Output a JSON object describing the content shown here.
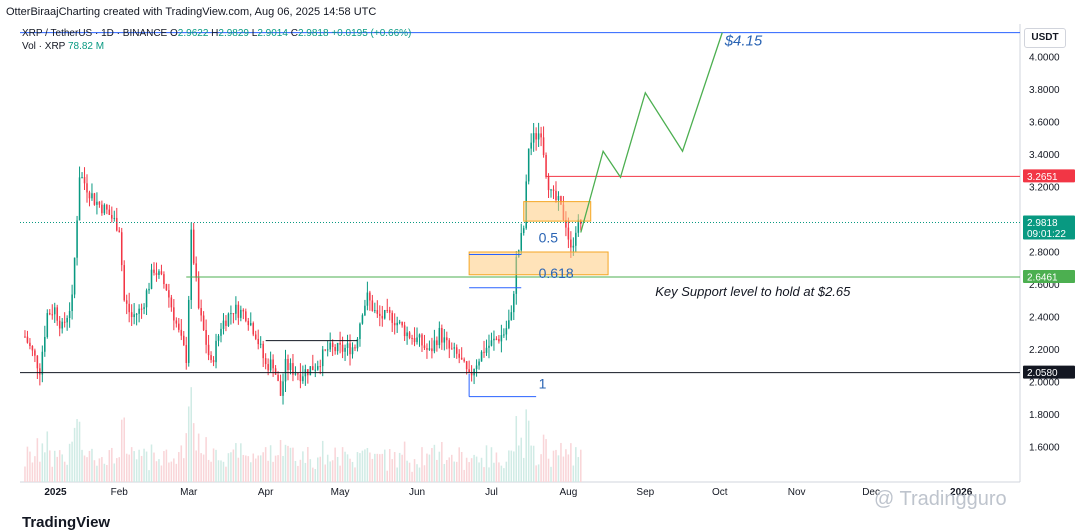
{
  "header": {
    "text": "OtterBiraajCharting created with TradingView.com, Aug 06, 2025 14:58 UTC"
  },
  "legend": {
    "symbol": "XRP / TetherUS · 1D · BINANCE",
    "o_label": "O",
    "o": "2.9622",
    "h_label": "H",
    "h": "2.9829",
    "l_label": "L",
    "l": "2.9014",
    "c_label": "C",
    "c": "2.9818",
    "change": "+0.0195 (+0.66%)",
    "vol_label": "Vol · XRP",
    "vol_value": "78.82 M"
  },
  "currency": "USDT",
  "footer_logo": "TradingView",
  "watermark": "@ Tradingguro",
  "colors": {
    "up": "#089981",
    "down": "#f23645",
    "vol_up": "#d0ebe5",
    "vol_down": "#f9d5d8",
    "green_line": "#4caf50",
    "red_line": "#f23645",
    "blue": "#2962ff",
    "dark": "#131722",
    "zone": "#ffcc80",
    "annotation": "#2a64b4"
  },
  "chart_data": {
    "type": "candlestick",
    "symbol": "XRP / TetherUS",
    "interval": "1D",
    "exchange": "BINANCE",
    "ylim": [
      1.5,
      4.2
    ],
    "y_ticks": [
      "4.0000",
      "3.8000",
      "3.6000",
      "3.4000",
      "3.2000",
      "3.0000",
      "2.8000",
      "2.6000",
      "2.4000",
      "2.2000",
      "2.0000",
      "1.8000",
      "1.6000"
    ],
    "x_ticks": [
      {
        "label": "2025",
        "date": "2025-01-01"
      },
      {
        "label": "Feb",
        "date": "2025-02-01"
      },
      {
        "label": "Mar",
        "date": "2025-03-01"
      },
      {
        "label": "Apr",
        "date": "2025-04-01"
      },
      {
        "label": "May",
        "date": "2025-05-01"
      },
      {
        "label": "Jun",
        "date": "2025-06-01"
      },
      {
        "label": "Jul",
        "date": "2025-07-01"
      },
      {
        "label": "Aug",
        "date": "2025-08-01"
      },
      {
        "label": "Sep",
        "date": "2025-09-01"
      },
      {
        "label": "Oct",
        "date": "2025-10-01"
      },
      {
        "label": "Nov",
        "date": "2025-11-01"
      },
      {
        "label": "Dec",
        "date": "2025-12-01"
      },
      {
        "label": "2026",
        "date": "2026-01-01"
      }
    ],
    "price_close_path": [
      {
        "date": "2024-12-25",
        "price": 2.28
      },
      {
        "date": "2024-12-31",
        "price": 2.08
      },
      {
        "date": "2025-01-03",
        "price": 2.42
      },
      {
        "date": "2025-01-06",
        "price": 2.45
      },
      {
        "date": "2025-01-09",
        "price": 2.33
      },
      {
        "date": "2025-01-13",
        "price": 2.5
      },
      {
        "date": "2025-01-16",
        "price": 3.28
      },
      {
        "date": "2025-01-19",
        "price": 3.2
      },
      {
        "date": "2025-01-22",
        "price": 3.12
      },
      {
        "date": "2025-01-27",
        "price": 3.05
      },
      {
        "date": "2025-02-01",
        "price": 2.95
      },
      {
        "date": "2025-02-03",
        "price": 2.5
      },
      {
        "date": "2025-02-06",
        "price": 2.4
      },
      {
        "date": "2025-02-10",
        "price": 2.45
      },
      {
        "date": "2025-02-15",
        "price": 2.7
      },
      {
        "date": "2025-02-20",
        "price": 2.58
      },
      {
        "date": "2025-02-25",
        "price": 2.3
      },
      {
        "date": "2025-02-28",
        "price": 2.15
      },
      {
        "date": "2025-03-02",
        "price": 2.9
      },
      {
        "date": "2025-03-05",
        "price": 2.45
      },
      {
        "date": "2025-03-10",
        "price": 2.1
      },
      {
        "date": "2025-03-14",
        "price": 2.35
      },
      {
        "date": "2025-03-19",
        "price": 2.45
      },
      {
        "date": "2025-03-24",
        "price": 2.42
      },
      {
        "date": "2025-03-28",
        "price": 2.3
      },
      {
        "date": "2025-04-01",
        "price": 2.1
      },
      {
        "date": "2025-04-04",
        "price": 2.12
      },
      {
        "date": "2025-04-07",
        "price": 1.92
      },
      {
        "date": "2025-04-09",
        "price": 2.1
      },
      {
        "date": "2025-04-15",
        "price": 2.05
      },
      {
        "date": "2025-04-21",
        "price": 2.1
      },
      {
        "date": "2025-04-26",
        "price": 2.2
      },
      {
        "date": "2025-05-02",
        "price": 2.2
      },
      {
        "date": "2025-05-07",
        "price": 2.22
      },
      {
        "date": "2025-05-10",
        "price": 2.45
      },
      {
        "date": "2025-05-12",
        "price": 2.52
      },
      {
        "date": "2025-05-16",
        "price": 2.4
      },
      {
        "date": "2025-05-22",
        "price": 2.4
      },
      {
        "date": "2025-05-28",
        "price": 2.3
      },
      {
        "date": "2025-06-02",
        "price": 2.25
      },
      {
        "date": "2025-06-06",
        "price": 2.18
      },
      {
        "date": "2025-06-10",
        "price": 2.3
      },
      {
        "date": "2025-06-14",
        "price": 2.2
      },
      {
        "date": "2025-06-18",
        "price": 2.15
      },
      {
        "date": "2025-06-22",
        "price": 2.02
      },
      {
        "date": "2025-06-24",
        "price": 2.1
      },
      {
        "date": "2025-06-28",
        "price": 2.2
      },
      {
        "date": "2025-07-02",
        "price": 2.25
      },
      {
        "date": "2025-07-06",
        "price": 2.3
      },
      {
        "date": "2025-07-09",
        "price": 2.4
      },
      {
        "date": "2025-07-11",
        "price": 2.75
      },
      {
        "date": "2025-07-14",
        "price": 2.95
      },
      {
        "date": "2025-07-16",
        "price": 3.45
      },
      {
        "date": "2025-07-18",
        "price": 3.5
      },
      {
        "date": "2025-07-21",
        "price": 3.55
      },
      {
        "date": "2025-07-23",
        "price": 3.3
      },
      {
        "date": "2025-07-25",
        "price": 3.15
      },
      {
        "date": "2025-07-28",
        "price": 3.1
      },
      {
        "date": "2025-07-31",
        "price": 2.98
      },
      {
        "date": "2025-08-02",
        "price": 2.8
      },
      {
        "date": "2025-08-04",
        "price": 2.95
      },
      {
        "date": "2025-08-06",
        "price": 2.98
      }
    ],
    "projection_path": [
      {
        "date": "2025-08-06",
        "price": 2.92
      },
      {
        "date": "2025-08-15",
        "price": 3.42
      },
      {
        "date": "2025-08-22",
        "price": 3.26
      },
      {
        "date": "2025-09-01",
        "price": 3.78
      },
      {
        "date": "2025-09-16",
        "price": 3.42
      },
      {
        "date": "2025-10-02",
        "price": 4.15
      }
    ],
    "levels": [
      {
        "price": 4.15,
        "label": "",
        "color": "#2962ff"
      },
      {
        "price": 3.2651,
        "label": "3.2651",
        "color": "#f23645",
        "from": "2025-07-23"
      },
      {
        "price": 2.9818,
        "label": "2.9818",
        "sublabel": "09:01:22",
        "color": "#089981",
        "dashed": true
      },
      {
        "price": 2.6461,
        "label": "2.6461",
        "color": "#4caf50",
        "from": "2025-02-28"
      },
      {
        "price": 2.058,
        "label": "2.0580",
        "color": "#131722"
      }
    ],
    "zones": [
      {
        "from": "2025-07-14",
        "to": "2025-08-10",
        "low": 2.99,
        "high": 3.11
      },
      {
        "from": "2025-06-22",
        "to": "2025-08-17",
        "low": 2.66,
        "high": 2.8
      }
    ],
    "fib_levels": [
      {
        "label": "0.5",
        "price": 2.785,
        "from": "2025-06-22",
        "to": "2025-07-13"
      },
      {
        "label": "0.618",
        "price": 2.58,
        "from": "2025-06-22",
        "to": "2025-07-13"
      },
      {
        "label": "1",
        "price": 1.91,
        "from": "2025-06-22",
        "to": "2025-07-19"
      }
    ],
    "range_box": {
      "from": "2025-04-01",
      "to": "2025-05-08",
      "price": 2.255
    },
    "annotations": [
      {
        "text": "$4.15",
        "date": "2025-10-03",
        "price": 4.07
      },
      {
        "text": "Key Support level to hold at $2.65",
        "date": "2025-09-05",
        "price": 2.53
      }
    ]
  }
}
